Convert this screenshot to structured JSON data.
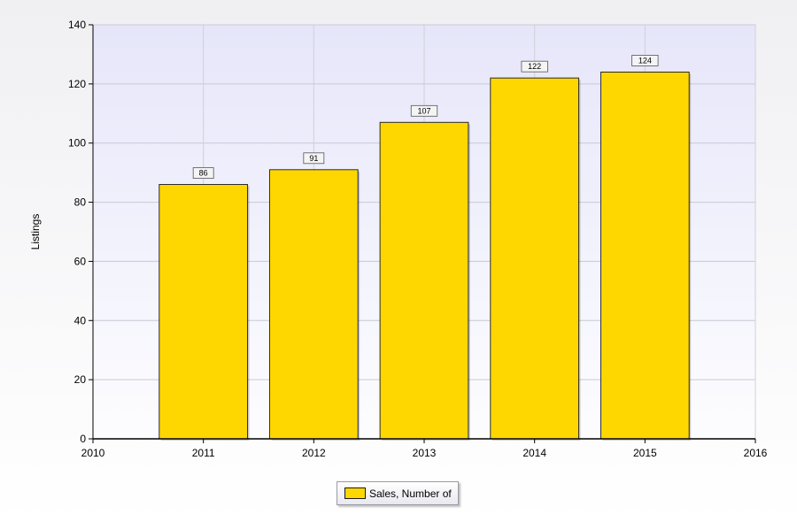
{
  "chart_data": {
    "type": "bar",
    "title": "",
    "xlabel": "",
    "ylabel": "Listings",
    "ylim": [
      0,
      140
    ],
    "yticks": [
      0,
      20,
      40,
      60,
      80,
      100,
      120,
      140
    ],
    "xlim": [
      2010,
      2016
    ],
    "xticks": [
      "2010",
      "2011",
      "2012",
      "2013",
      "2014",
      "2015",
      "2016"
    ],
    "categories": [
      "2011",
      "2012",
      "2013",
      "2014",
      "2015"
    ],
    "series": [
      {
        "name": "Sales, Number of",
        "values": [
          86,
          91,
          107,
          122,
          124
        ],
        "color": "#FFD700"
      }
    ],
    "grid": true,
    "legend": "bottom-center",
    "plot_background": "#ebebfa"
  }
}
